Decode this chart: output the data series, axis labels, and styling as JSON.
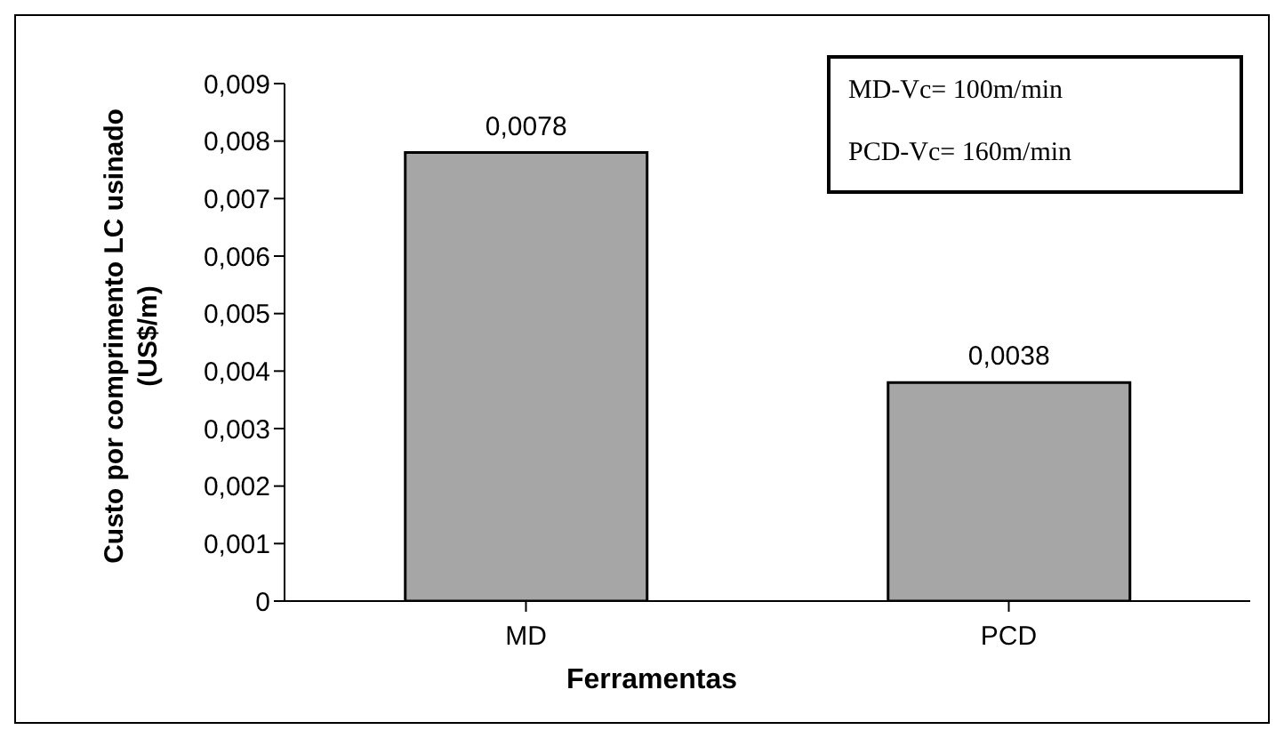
{
  "chart_data": {
    "type": "bar",
    "xlabel": "Ferramentas",
    "ylabel": "Custo por comprimento LC usinado (US$/m)",
    "categories": [
      "MD",
      "PCD"
    ],
    "values": [
      0.0078,
      0.0038
    ],
    "value_labels": [
      "0,0078",
      "0,0038"
    ],
    "color": "#a6a6a6",
    "ylim": [
      0,
      0.009
    ],
    "yticks": [
      {
        "value": 0,
        "label": "0"
      },
      {
        "value": 0.001,
        "label": "0,001"
      },
      {
        "value": 0.002,
        "label": "0,002"
      },
      {
        "value": 0.003,
        "label": "0,003"
      },
      {
        "value": 0.004,
        "label": "0,004"
      },
      {
        "value": 0.005,
        "label": "0,005"
      },
      {
        "value": 0.006,
        "label": "0,006"
      },
      {
        "value": 0.007,
        "label": "0,007"
      },
      {
        "value": 0.008,
        "label": "0,008"
      },
      {
        "value": 0.009,
        "label": "0,009"
      }
    ],
    "grid": false,
    "annotations": [
      "MD-Vc= 100m/min",
      "PCD-Vc= 160m/min"
    ]
  }
}
